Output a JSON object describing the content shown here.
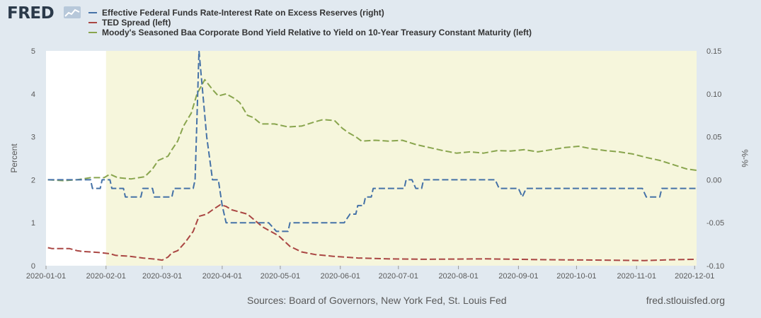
{
  "logo": {
    "text": "FRED",
    "badge_icon": "line-chart-icon"
  },
  "sources": "Sources: Board of Governors, New York Fed, St. Louis Fed",
  "site": "fred.stlouisfed.org",
  "chart_data": {
    "type": "line",
    "title": "",
    "xlabel": "",
    "ylabel": "Percent",
    "y2label": "%-%",
    "ylim": [
      0,
      5
    ],
    "y2lim": [
      -0.1,
      0.15
    ],
    "xlim": [
      "2020-01-01",
      "2020-12-02"
    ],
    "recession_shading": [
      "2020-02-01",
      "2020-12-02"
    ],
    "xticks": [
      "2020-01-01",
      "2020-02-01",
      "2020-03-01",
      "2020-04-01",
      "2020-05-01",
      "2020-06-01",
      "2020-07-01",
      "2020-08-01",
      "2020-09-01",
      "2020-10-01",
      "2020-11-01",
      "2020-12-01"
    ],
    "yticks": [
      "0",
      "1",
      "2",
      "3",
      "4",
      "5"
    ],
    "y2ticks": [
      "-0.10",
      "-0.05",
      "0.00",
      "0.05",
      "0.10",
      "0.15"
    ],
    "colors": {
      "background": "#e1e9f0",
      "plot": "#ffffff",
      "shade": "#f6f6dc",
      "grid": "#e0e0e0",
      "axis_text": "#595959"
    },
    "series": [
      {
        "name": "Effective Federal Funds Rate-Interest Rate on Excess Reserves (right)",
        "axis": "right",
        "color": "#4572a7",
        "points": [
          [
            "2020-01-02",
            0.0
          ],
          [
            "2020-01-24",
            0.0
          ],
          [
            "2020-01-25",
            -0.01
          ],
          [
            "2020-01-29",
            -0.01
          ],
          [
            "2020-01-30",
            0.0
          ],
          [
            "2020-02-03",
            0.0
          ],
          [
            "2020-02-04",
            -0.01
          ],
          [
            "2020-02-10",
            -0.01
          ],
          [
            "2020-02-11",
            -0.02
          ],
          [
            "2020-02-19",
            -0.02
          ],
          [
            "2020-02-20",
            -0.01
          ],
          [
            "2020-02-25",
            -0.01
          ],
          [
            "2020-02-26",
            -0.02
          ],
          [
            "2020-03-06",
            -0.02
          ],
          [
            "2020-03-07",
            -0.01
          ],
          [
            "2020-03-17",
            -0.01
          ],
          [
            "2020-03-18",
            0.0
          ],
          [
            "2020-03-20",
            0.15
          ],
          [
            "2020-03-24",
            0.05
          ],
          [
            "2020-03-27",
            0.0
          ],
          [
            "2020-03-30",
            0.0
          ],
          [
            "2020-04-01",
            -0.03
          ],
          [
            "2020-04-03",
            -0.05
          ],
          [
            "2020-04-25",
            -0.05
          ],
          [
            "2020-04-29",
            -0.06
          ],
          [
            "2020-05-05",
            -0.06
          ],
          [
            "2020-05-06",
            -0.05
          ],
          [
            "2020-06-03",
            -0.05
          ],
          [
            "2020-06-06",
            -0.04
          ],
          [
            "2020-06-09",
            -0.04
          ],
          [
            "2020-06-10",
            -0.03
          ],
          [
            "2020-06-13",
            -0.03
          ],
          [
            "2020-06-14",
            -0.02
          ],
          [
            "2020-06-17",
            -0.02
          ],
          [
            "2020-06-18",
            -0.01
          ],
          [
            "2020-07-01",
            -0.01
          ],
          [
            "2020-07-04",
            -0.01
          ],
          [
            "2020-07-05",
            0.0
          ],
          [
            "2020-07-08",
            0.0
          ],
          [
            "2020-07-10",
            -0.01
          ],
          [
            "2020-07-13",
            -0.01
          ],
          [
            "2020-07-14",
            0.0
          ],
          [
            "2020-08-20",
            0.0
          ],
          [
            "2020-08-22",
            -0.01
          ],
          [
            "2020-09-01",
            -0.01
          ],
          [
            "2020-09-03",
            -0.02
          ],
          [
            "2020-09-05",
            -0.01
          ],
          [
            "2020-11-04",
            -0.01
          ],
          [
            "2020-11-06",
            -0.02
          ],
          [
            "2020-11-13",
            -0.02
          ],
          [
            "2020-11-14",
            -0.01
          ],
          [
            "2020-12-02",
            -0.01
          ]
        ]
      },
      {
        "name": "TED Spread (left)",
        "axis": "left",
        "color": "#aa4643",
        "points": [
          [
            "2020-01-02",
            0.42
          ],
          [
            "2020-01-04",
            0.4
          ],
          [
            "2020-01-13",
            0.4
          ],
          [
            "2020-01-17",
            0.35
          ],
          [
            "2020-01-20",
            0.33
          ],
          [
            "2020-01-28",
            0.31
          ],
          [
            "2020-02-03",
            0.28
          ],
          [
            "2020-02-06",
            0.24
          ],
          [
            "2020-02-13",
            0.22
          ],
          [
            "2020-02-20",
            0.18
          ],
          [
            "2020-02-27",
            0.15
          ],
          [
            "2020-03-01",
            0.13
          ],
          [
            "2020-03-04",
            0.2
          ],
          [
            "2020-03-06",
            0.3
          ],
          [
            "2020-03-09",
            0.35
          ],
          [
            "2020-03-13",
            0.55
          ],
          [
            "2020-03-17",
            0.8
          ],
          [
            "2020-03-20",
            1.15
          ],
          [
            "2020-03-24",
            1.2
          ],
          [
            "2020-03-27",
            1.3
          ],
          [
            "2020-03-31",
            1.42
          ],
          [
            "2020-04-03",
            1.38
          ],
          [
            "2020-04-06",
            1.3
          ],
          [
            "2020-04-10",
            1.25
          ],
          [
            "2020-04-14",
            1.2
          ],
          [
            "2020-04-18",
            1.05
          ],
          [
            "2020-04-22",
            0.9
          ],
          [
            "2020-04-26",
            0.8
          ],
          [
            "2020-04-30",
            0.7
          ],
          [
            "2020-05-06",
            0.45
          ],
          [
            "2020-05-12",
            0.32
          ],
          [
            "2020-05-19",
            0.26
          ],
          [
            "2020-05-28",
            0.22
          ],
          [
            "2020-06-10",
            0.18
          ],
          [
            "2020-06-25",
            0.16
          ],
          [
            "2020-07-15",
            0.15
          ],
          [
            "2020-08-15",
            0.16
          ],
          [
            "2020-09-15",
            0.14
          ],
          [
            "2020-10-15",
            0.13
          ],
          [
            "2020-11-05",
            0.12
          ],
          [
            "2020-11-20",
            0.14
          ],
          [
            "2020-12-02",
            0.15
          ]
        ]
      },
      {
        "name": "Moody's Seasoned Baa Corporate Bond Yield Relative to Yield on 10-Year Treasury Constant Maturity (left)",
        "axis": "left",
        "color": "#89a54e",
        "points": [
          [
            "2020-01-02",
            2.0
          ],
          [
            "2020-01-10",
            1.98
          ],
          [
            "2020-01-17",
            2.0
          ],
          [
            "2020-01-24",
            2.05
          ],
          [
            "2020-01-31",
            2.05
          ],
          [
            "2020-02-03",
            2.13
          ],
          [
            "2020-02-07",
            2.05
          ],
          [
            "2020-02-14",
            2.02
          ],
          [
            "2020-02-21",
            2.07
          ],
          [
            "2020-02-25",
            2.25
          ],
          [
            "2020-02-28",
            2.45
          ],
          [
            "2020-03-04",
            2.55
          ],
          [
            "2020-03-06",
            2.7
          ],
          [
            "2020-03-09",
            2.9
          ],
          [
            "2020-03-12",
            3.25
          ],
          [
            "2020-03-16",
            3.55
          ],
          [
            "2020-03-19",
            4.0
          ],
          [
            "2020-03-23",
            4.33
          ],
          [
            "2020-03-27",
            4.1
          ],
          [
            "2020-03-30",
            3.95
          ],
          [
            "2020-04-03",
            4.0
          ],
          [
            "2020-04-07",
            3.9
          ],
          [
            "2020-04-10",
            3.8
          ],
          [
            "2020-04-14",
            3.5
          ],
          [
            "2020-04-17",
            3.45
          ],
          [
            "2020-04-21",
            3.3
          ],
          [
            "2020-04-28",
            3.3
          ],
          [
            "2020-05-05",
            3.23
          ],
          [
            "2020-05-12",
            3.25
          ],
          [
            "2020-05-19",
            3.35
          ],
          [
            "2020-05-23",
            3.4
          ],
          [
            "2020-05-29",
            3.38
          ],
          [
            "2020-06-02",
            3.2
          ],
          [
            "2020-06-05",
            3.1
          ],
          [
            "2020-06-09",
            3.0
          ],
          [
            "2020-06-12",
            2.9
          ],
          [
            "2020-06-19",
            2.92
          ],
          [
            "2020-06-26",
            2.9
          ],
          [
            "2020-07-03",
            2.92
          ],
          [
            "2020-07-10",
            2.82
          ],
          [
            "2020-07-17",
            2.75
          ],
          [
            "2020-07-24",
            2.68
          ],
          [
            "2020-07-31",
            2.62
          ],
          [
            "2020-08-07",
            2.65
          ],
          [
            "2020-08-14",
            2.62
          ],
          [
            "2020-08-21",
            2.68
          ],
          [
            "2020-08-28",
            2.67
          ],
          [
            "2020-09-04",
            2.7
          ],
          [
            "2020-09-11",
            2.65
          ],
          [
            "2020-09-18",
            2.7
          ],
          [
            "2020-09-25",
            2.75
          ],
          [
            "2020-10-02",
            2.78
          ],
          [
            "2020-10-09",
            2.72
          ],
          [
            "2020-10-16",
            2.68
          ],
          [
            "2020-10-23",
            2.65
          ],
          [
            "2020-10-30",
            2.6
          ],
          [
            "2020-11-06",
            2.52
          ],
          [
            "2020-11-13",
            2.45
          ],
          [
            "2020-11-20",
            2.35
          ],
          [
            "2020-11-27",
            2.25
          ],
          [
            "2020-12-02",
            2.22
          ]
        ]
      }
    ]
  }
}
